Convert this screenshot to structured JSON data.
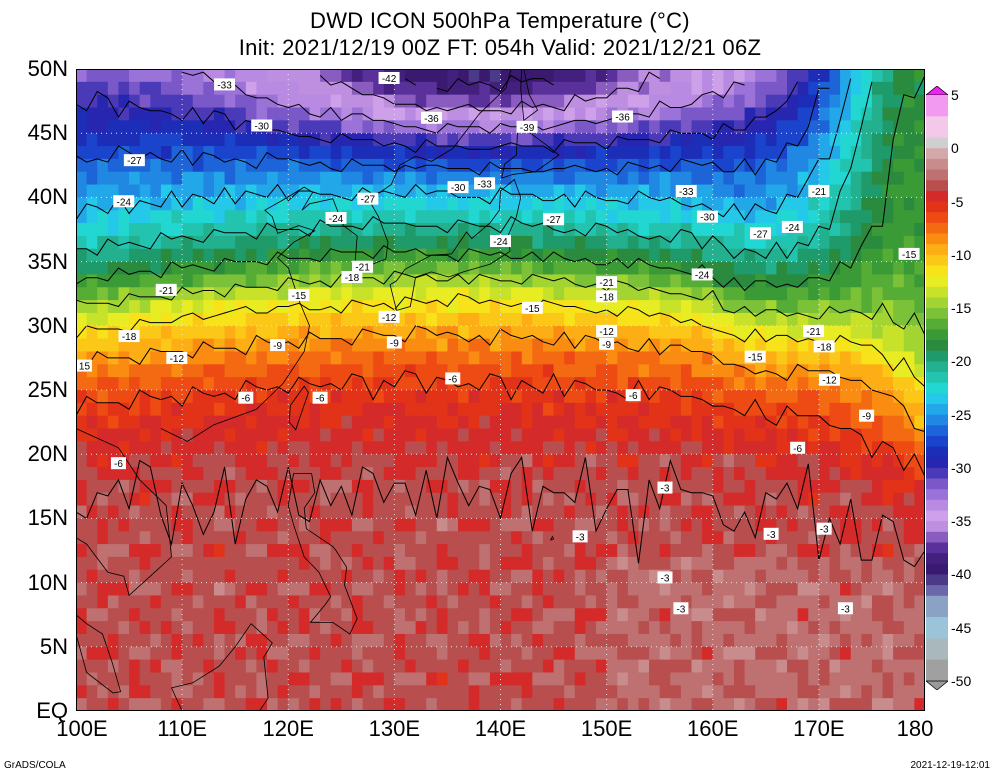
{
  "title": {
    "line1": "DWD ICON 500hPa Temperature (°C)",
    "line2": "Init: 2021/12/19 00Z  FT: 054h  Valid: 2021/12/21 06Z"
  },
  "axes": {
    "lat_labels": [
      "50N",
      "45N",
      "40N",
      "35N",
      "30N",
      "25N",
      "20N",
      "15N",
      "10N",
      "5N",
      "EQ"
    ],
    "lat_values": [
      50,
      45,
      40,
      35,
      30,
      25,
      20,
      15,
      10,
      5,
      0
    ],
    "lon_labels": [
      "100E",
      "110E",
      "120E",
      "130E",
      "140E",
      "150E",
      "160E",
      "170E",
      "180"
    ],
    "lon_values": [
      100,
      110,
      120,
      130,
      140,
      150,
      160,
      170,
      180
    ]
  },
  "colorbar": {
    "labels": [
      "5",
      "0",
      "-5",
      "-10",
      "-15",
      "-20",
      "-25",
      "-30",
      "-35",
      "-40",
      "-45",
      "-50"
    ],
    "values": [
      5,
      0,
      -5,
      -10,
      -15,
      -20,
      -25,
      -30,
      -35,
      -40,
      -45,
      -50
    ],
    "unit": "°C"
  },
  "contour_labels": [
    {
      "text": "-42",
      "lon": 129.5,
      "lat": 49.3
    },
    {
      "text": "-33",
      "lon": 114,
      "lat": 48.8
    },
    {
      "text": "-36",
      "lon": 133.5,
      "lat": 46.2
    },
    {
      "text": "-39",
      "lon": 142.5,
      "lat": 45.5
    },
    {
      "text": "-36",
      "lon": 151.5,
      "lat": 46.3
    },
    {
      "text": "-30",
      "lon": 117.5,
      "lat": 45.6
    },
    {
      "text": "-27",
      "lon": 105.5,
      "lat": 42.9
    },
    {
      "text": "-30",
      "lon": 136,
      "lat": 40.8
    },
    {
      "text": "-33",
      "lon": 138.5,
      "lat": 41.1
    },
    {
      "text": "-33",
      "lon": 157.5,
      "lat": 40.5
    },
    {
      "text": "-21",
      "lon": 170,
      "lat": 40.5
    },
    {
      "text": "-24",
      "lon": 104.5,
      "lat": 39.7
    },
    {
      "text": "-27",
      "lon": 127.5,
      "lat": 39.9
    },
    {
      "text": "-24",
      "lon": 124.5,
      "lat": 38.4
    },
    {
      "text": "-27",
      "lon": 145,
      "lat": 38.3
    },
    {
      "text": "-30",
      "lon": 159.5,
      "lat": 38.5
    },
    {
      "text": "-24",
      "lon": 140,
      "lat": 36.6
    },
    {
      "text": "-27",
      "lon": 164.5,
      "lat": 37.2
    },
    {
      "text": "-24",
      "lon": 167.5,
      "lat": 37.7
    },
    {
      "text": "-21",
      "lon": 127,
      "lat": 34.6
    },
    {
      "text": "-18",
      "lon": 126,
      "lat": 33.8
    },
    {
      "text": "-21",
      "lon": 150,
      "lat": 33.4
    },
    {
      "text": "-24",
      "lon": 159,
      "lat": 34.0
    },
    {
      "text": "-15",
      "lon": 178.5,
      "lat": 35.6
    },
    {
      "text": "-21",
      "lon": 108.5,
      "lat": 32.8
    },
    {
      "text": "-15",
      "lon": 121,
      "lat": 32.4
    },
    {
      "text": "-18",
      "lon": 150,
      "lat": 32.3
    },
    {
      "text": "-15",
      "lon": 143,
      "lat": 31.4
    },
    {
      "text": "-12",
      "lon": 129.5,
      "lat": 30.7
    },
    {
      "text": "-12",
      "lon": 150,
      "lat": 29.6
    },
    {
      "text": "-21",
      "lon": 169.5,
      "lat": 29.6
    },
    {
      "text": "-18",
      "lon": 105,
      "lat": 29.2
    },
    {
      "text": "-9",
      "lon": 119,
      "lat": 28.5
    },
    {
      "text": "-9",
      "lon": 130,
      "lat": 28.7
    },
    {
      "text": "-9",
      "lon": 150,
      "lat": 28.6
    },
    {
      "text": "-18",
      "lon": 170.5,
      "lat": 28.4
    },
    {
      "text": "-12",
      "lon": 109.5,
      "lat": 27.5
    },
    {
      "text": "-15",
      "lon": 164,
      "lat": 27.6
    },
    {
      "text": "15",
      "lon": 100.8,
      "lat": 26.9
    },
    {
      "text": "-6",
      "lon": 135.5,
      "lat": 25.9
    },
    {
      "text": "-12",
      "lon": 171,
      "lat": 25.8
    },
    {
      "text": "-6",
      "lon": 116,
      "lat": 24.4
    },
    {
      "text": "-6",
      "lon": 123,
      "lat": 24.4
    },
    {
      "text": "-6",
      "lon": 152.5,
      "lat": 24.6
    },
    {
      "text": "-9",
      "lon": 174.5,
      "lat": 23.0
    },
    {
      "text": "-6",
      "lon": 168,
      "lat": 20.5
    },
    {
      "text": "-6",
      "lon": 104,
      "lat": 19.3
    },
    {
      "text": "-3",
      "lon": 155.5,
      "lat": 17.4
    },
    {
      "text": "-3",
      "lon": 147.5,
      "lat": 13.6
    },
    {
      "text": "-3",
      "lon": 165.5,
      "lat": 13.8
    },
    {
      "text": "-3",
      "lon": 170.5,
      "lat": 14.2
    },
    {
      "text": "-3",
      "lon": 155.5,
      "lat": 10.4
    },
    {
      "text": "-3",
      "lon": 157,
      "lat": 8.0
    },
    {
      "text": "-3",
      "lon": 172.5,
      "lat": 8.0
    }
  ],
  "footer": {
    "left": "GrADS/COLA",
    "right": "2021-12-19-12:01"
  }
}
